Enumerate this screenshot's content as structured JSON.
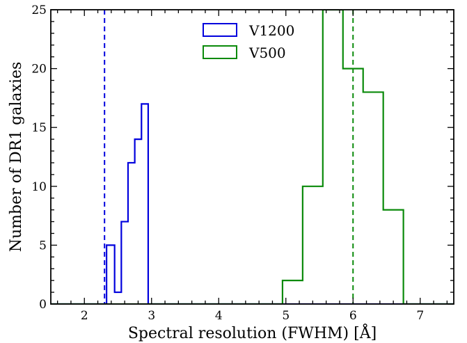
{
  "chart_data": {
    "type": "histogram",
    "xlabel": "Spectral resolution (FWHM) [Å]",
    "ylabel": "Number of DR1 galaxies",
    "xlim": [
      1.5,
      7.5
    ],
    "ylim": [
      0,
      25
    ],
    "xticks": [
      2,
      3,
      4,
      5,
      6,
      7
    ],
    "yticks": [
      0,
      5,
      10,
      15,
      20,
      25
    ],
    "x_minor_step": 0.2,
    "y_minor_step": 1,
    "legend_position": "upper-center",
    "grid": false,
    "series": [
      {
        "name": "V1200",
        "color": "#0000dd",
        "bin_edges": [
          1.5,
          2.33,
          2.45,
          2.55,
          2.65,
          2.75,
          2.85,
          2.95,
          7.5
        ],
        "counts": [
          0,
          5,
          1,
          7,
          12,
          14,
          17,
          0
        ],
        "reference_line": 2.3
      },
      {
        "name": "V500",
        "color": "#0a8a0a",
        "bin_edges": [
          1.5,
          4.95,
          5.25,
          5.55,
          5.85,
          6.15,
          6.45,
          6.75,
          7.5
        ],
        "counts": [
          0,
          2,
          10,
          25,
          20,
          18,
          8,
          0
        ],
        "reference_line": 6.0
      }
    ]
  }
}
